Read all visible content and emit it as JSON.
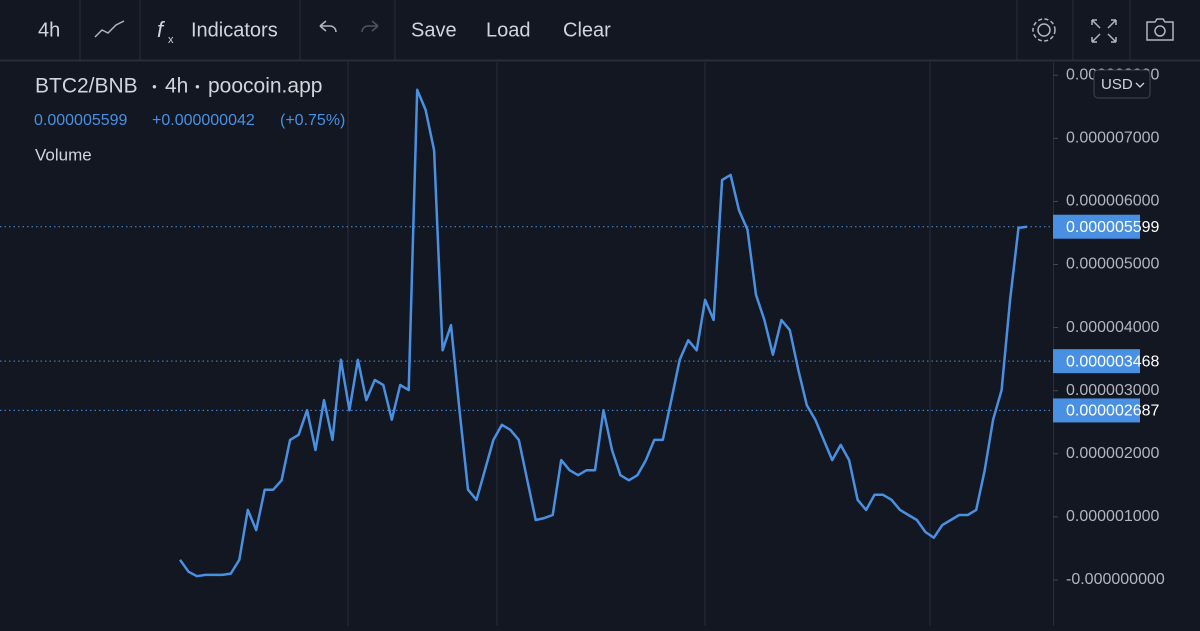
{
  "toolbar": {
    "interval": "4h",
    "indicators": "Indicators",
    "save": "Save",
    "load": "Load",
    "clear": "Clear"
  },
  "header": {
    "symbol": "BTC2/BNB",
    "interval": "4h",
    "source": "poocoin.app",
    "price": "0.000005599",
    "change": "+0.000000042",
    "change_pct": "(+0.75%)",
    "volume": "Volume"
  },
  "currency": "USD",
  "chart_data": {
    "type": "line",
    "color": "#4a90e2",
    "ylim": [
      -7.3e-07,
      8.21e-06
    ],
    "yticks": [
      {
        "value": 0,
        "label": "-0.000000000"
      },
      {
        "value": 1e-06,
        "label": "0.000001000"
      },
      {
        "value": 2e-06,
        "label": "0.000002000"
      },
      {
        "value": 3e-06,
        "label": "0.000003000"
      },
      {
        "value": 4e-06,
        "label": "0.000004000"
      },
      {
        "value": 5e-06,
        "label": "0.000005000"
      },
      {
        "value": 6e-06,
        "label": "0.000006000"
      },
      {
        "value": 7e-06,
        "label": "0.000007000"
      },
      {
        "value": 8e-06,
        "label": "0.000008000"
      }
    ],
    "price_lines": [
      5.599e-06,
      3.468e-06,
      2.687e-06
    ],
    "price_line_color": "#4a90e2",
    "values": [
      3.2e-07,
      1.3e-07,
      6e-08,
      8e-08,
      8e-08,
      8e-08,
      1e-07,
      3.2e-07,
      1.11e-06,
      7.9e-07,
      1.43e-06,
      1.43e-06,
      1.58e-06,
      2.22e-06,
      2.3e-06,
      2.69e-06,
      2.06e-06,
      2.85e-06,
      2.22e-06,
      3.49e-06,
      2.69e-06,
      3.49e-06,
      2.85e-06,
      3.17e-06,
      3.09e-06,
      2.54e-06,
      3.09e-06,
      3.01e-06,
      7.77e-06,
      7.45e-06,
      6.81e-06,
      3.64e-06,
      4.04e-06,
      2.69e-06,
      1.43e-06,
      1.27e-06,
      1.74e-06,
      2.22e-06,
      2.46e-06,
      2.38e-06,
      2.22e-06,
      1.58e-06,
      9.5e-07,
      9.8e-07,
      1.03e-06,
      1.9e-06,
      1.74e-06,
      1.66e-06,
      1.74e-06,
      1.74e-06,
      2.69e-06,
      2.06e-06,
      1.66e-06,
      1.58e-06,
      1.66e-06,
      1.9e-06,
      2.22e-06,
      2.22e-06,
      2.85e-06,
      3.49e-06,
      3.8e-06,
      3.64e-06,
      4.44e-06,
      4.12e-06,
      6.34e-06,
      6.42e-06,
      5.86e-06,
      5.55e-06,
      4.52e-06,
      4.12e-06,
      3.57e-06,
      4.12e-06,
      3.96e-06,
      3.33e-06,
      2.77e-06,
      2.54e-06,
      2.22e-06,
      1.9e-06,
      2.14e-06,
      1.9e-06,
      1.27e-06,
      1.11e-06,
      1.35e-06,
      1.35e-06,
      1.27e-06,
      1.11e-06,
      1.03e-06,
      9.5e-07,
      7.6e-07,
      6.7e-07,
      8.7e-07,
      9.5e-07,
      1.03e-06,
      1.03e-06,
      1.11e-06,
      1.74e-06,
      2.54e-06,
      3.01e-06,
      4.44e-06,
      5.58e-06,
      5.599e-06
    ]
  }
}
